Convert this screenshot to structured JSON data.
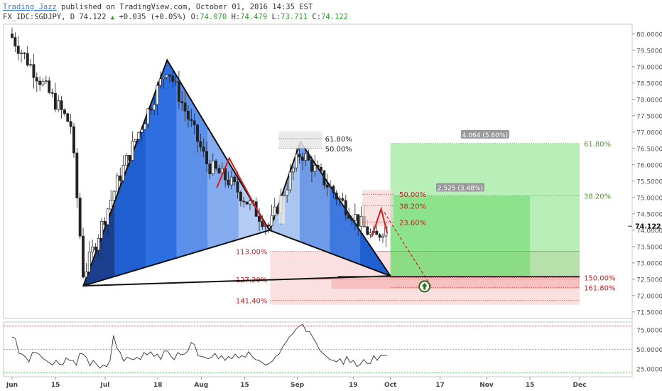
{
  "header": {
    "author": "Trading_Jazz",
    "published_text": "published on TradingView.com, October 01, 2016 14:35 EST",
    "symbol_line": "FX_IDC:SGDJPY, D 74.122",
    "change": "+0.035 (+0.05%)",
    "o_label": "O:",
    "o_value": "74.070",
    "h_label": "H:",
    "h_value": "74.479",
    "l_label": "L:",
    "l_value": "73.711",
    "c_label": "C:",
    "c_value": "74.122"
  },
  "colors": {
    "pattern_dark": "#1b3f8f",
    "pattern_mid": "#1f5fd0",
    "pattern_light": "#a9c5f0",
    "target_green": "#7ee27e",
    "stop_red": "#f6c6c6",
    "fib_red": "#d02020",
    "fib_green": "#4a9a2a"
  },
  "chart_data": {
    "type": "candlestick",
    "symbol": "FX_IDC:SGDJPY",
    "timeframe": "D",
    "last_price": 74.122,
    "ylim": [
      71.3,
      80.3
    ],
    "y_ticks": [
      "80.0000",
      "79.5000",
      "79.0000",
      "78.5000",
      "78.0000",
      "77.5000",
      "77.0000",
      "76.5000",
      "76.0000",
      "75.5000",
      "75.0000",
      "74.5000",
      "74.0000",
      "73.5000",
      "73.0000",
      "72.5000",
      "72.0000",
      "71.5000"
    ],
    "x_ticks": [
      {
        "label": "Jun",
        "x": "2016-06-01"
      },
      {
        "label": "15",
        "x": "2016-06-15"
      },
      {
        "label": "Jul",
        "x": "2016-07-01"
      },
      {
        "label": "18",
        "x": "2016-07-18"
      },
      {
        "label": "Aug",
        "x": "2016-08-01"
      },
      {
        "label": "15",
        "x": "2016-08-15"
      },
      {
        "label": "Sep",
        "x": "2016-09-01"
      },
      {
        "label": "19",
        "x": "2016-09-19"
      },
      {
        "label": "Oct",
        "x": "2016-10-01"
      },
      {
        "label": "17",
        "x": "2016-10-17"
      },
      {
        "label": "Nov",
        "x": "2016-11-01"
      },
      {
        "label": "15",
        "x": "2016-11-15"
      },
      {
        "label": "Dec",
        "x": "2016-12-01"
      }
    ],
    "harmonic_points": [
      {
        "x": "2016-06-24",
        "y": 72.3
      },
      {
        "x": "2016-07-21",
        "y": 79.2
      },
      {
        "x": "2016-08-23",
        "y": 74.0
      },
      {
        "x": "2016-09-02",
        "y": 76.7
      },
      {
        "x": "2016-10-01",
        "y": 72.6
      }
    ],
    "fib_retracement_top": [
      {
        "label": "61.80%",
        "y": 76.8
      },
      {
        "label": "50.00%",
        "y": 76.5
      }
    ],
    "fib_retracement_right": [
      {
        "label": "50.00%",
        "y": 75.1
      },
      {
        "label": "38.20%",
        "y": 74.75
      },
      {
        "label": "23.60%",
        "y": 74.25
      }
    ],
    "fib_extension": [
      {
        "label": "113.00%",
        "y": 73.35
      },
      {
        "label": "127.20%",
        "y": 72.5
      },
      {
        "label": "141.40%",
        "y": 71.85
      }
    ],
    "target_box": {
      "from": "2016-10-01",
      "to": "2016-12-01",
      "y_top": 76.65,
      "y_bottom": 72.6,
      "measure_outer": "4.064 (5.60%)",
      "measure_inner": "2.525 (3.48%)",
      "level_top": {
        "label": "61.80%",
        "y": 76.65
      },
      "level_mid": {
        "label": "38.20%",
        "y": 75.05
      }
    },
    "stop_zone": [
      {
        "label": "150.00%",
        "y": 72.55
      },
      {
        "label": "161.80%",
        "y": 72.25
      }
    ],
    "oscillator": {
      "ticks": [
        "75.0000",
        "50.0000",
        "25.0000"
      ],
      "ylim": [
        15,
        85
      ],
      "levels": [
        80,
        50,
        20
      ],
      "values": [
        66,
        64,
        45,
        44,
        40,
        34,
        46,
        46,
        44,
        39,
        36,
        33,
        30,
        36,
        31,
        30,
        39,
        36,
        36,
        30,
        45,
        44,
        40,
        29,
        36,
        31,
        26,
        30,
        28,
        36,
        68,
        52,
        46,
        35,
        40,
        38,
        37,
        40,
        37,
        46,
        43,
        47,
        41,
        44,
        37,
        48,
        48,
        41,
        37,
        46,
        43,
        44,
        48,
        59,
        56,
        42,
        41,
        40,
        38,
        40,
        45,
        38,
        42,
        36,
        41,
        38,
        44,
        39,
        42,
        40,
        47,
        41,
        37,
        36,
        33,
        30,
        32,
        35,
        41,
        44,
        53,
        59,
        66,
        70,
        76,
        80,
        82,
        73,
        73,
        65,
        58,
        49,
        45,
        41,
        37,
        36,
        34,
        38,
        31,
        41,
        33,
        36,
        28,
        31,
        37,
        32,
        32,
        42,
        36,
        42,
        42,
        43
      ]
    }
  }
}
